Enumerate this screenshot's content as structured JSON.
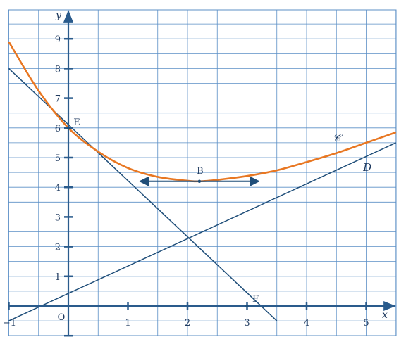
{
  "chart_data": {
    "type": "line",
    "xlabel": "x",
    "ylabel": "y",
    "xlim": [
      -1,
      5.5
    ],
    "ylim": [
      -1,
      10
    ],
    "grid": true,
    "x_ticks": [
      -1,
      1,
      2,
      3,
      4,
      5
    ],
    "y_ticks": [
      1,
      2,
      3,
      4,
      5,
      6,
      7,
      8,
      9
    ],
    "origin_label": "O",
    "colors": {
      "grid": "#5b8fc6",
      "axes": "#2a5b8c",
      "lines": "#1f4e79",
      "curve": "#e87722"
    },
    "curve": {
      "label": "𝒞",
      "x": [
        -1,
        -0.5,
        0,
        0.5,
        1,
        1.5,
        2,
        2.2,
        2.5,
        3,
        3.5,
        4,
        4.5,
        5,
        5.5
      ],
      "y": [
        8.9,
        7.25,
        6.0,
        5.2,
        4.65,
        4.35,
        4.22,
        4.2,
        4.25,
        4.38,
        4.57,
        4.85,
        5.15,
        5.5,
        5.85
      ]
    },
    "lines": [
      {
        "label": "",
        "x": [
          -1,
          3.5
        ],
        "y": [
          8,
          -0.5
        ]
      },
      {
        "label": "D",
        "x": [
          -1,
          5.5
        ],
        "y": [
          -0.5,
          5.5
        ]
      }
    ],
    "tangent": {
      "x": [
        1.2,
        3.2
      ],
      "y": [
        4.2,
        4.2
      ]
    },
    "points": [
      {
        "label": "E",
        "x": 0,
        "y": 6
      },
      {
        "label": "B",
        "x": 2.2,
        "y": 4.2
      },
      {
        "label": "F",
        "x": 3,
        "y": 0
      }
    ]
  }
}
